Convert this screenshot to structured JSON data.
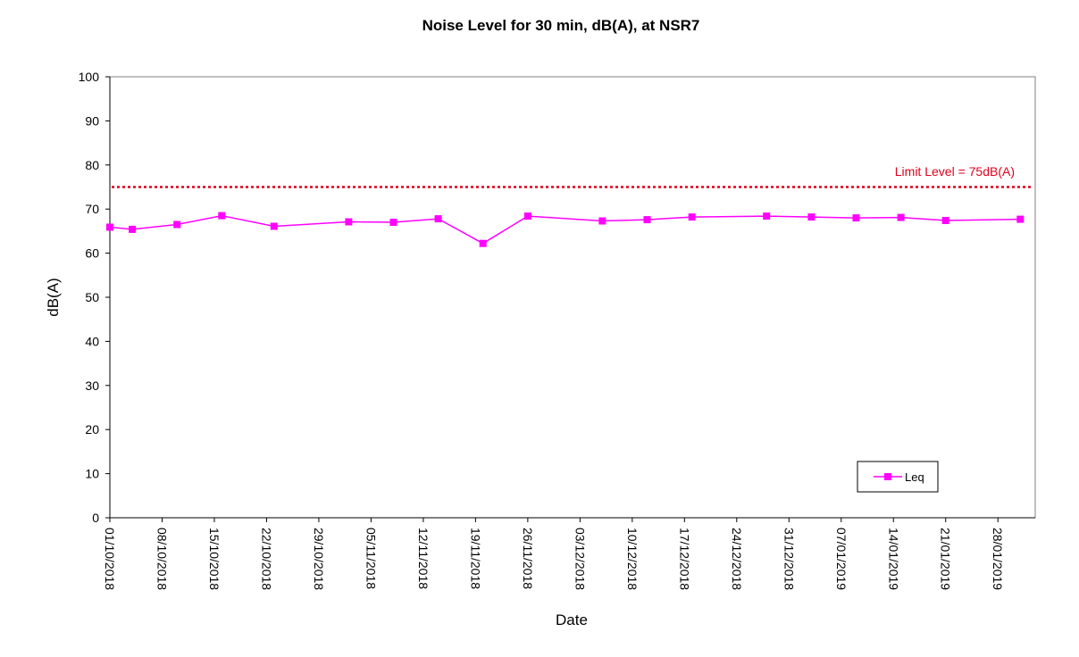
{
  "chart_data": {
    "type": "line",
    "title": "Noise Level for 30 min, dB(A), at NSR7",
    "xlabel": "Date",
    "ylabel": "dB(A)",
    "ylim": [
      0,
      100
    ],
    "yticks": [
      0,
      10,
      20,
      30,
      40,
      50,
      60,
      70,
      80,
      90,
      100
    ],
    "xlim": [
      "2018-10-01",
      "2019-02-02"
    ],
    "xtick_labels": [
      "01/10/2018",
      "08/10/2018",
      "15/10/2018",
      "22/10/2018",
      "29/10/2018",
      "05/11/2018",
      "12/11/2018",
      "19/11/2018",
      "26/11/2018",
      "03/12/2018",
      "10/12/2018",
      "17/12/2018",
      "24/12/2018",
      "31/12/2018",
      "07/01/2019",
      "14/01/2019",
      "21/01/2019",
      "28/01/2019"
    ],
    "grid": false,
    "legend_position": "bottom-right",
    "colors": {
      "series": "#ff00ff",
      "limit": "#e0001b",
      "axis": "#000000"
    },
    "series": [
      {
        "name": "Leq",
        "marker": "square",
        "x": [
          "2018-10-01",
          "2018-10-04",
          "2018-10-10",
          "2018-10-16",
          "2018-10-23",
          "2018-11-02",
          "2018-11-08",
          "2018-11-14",
          "2018-11-20",
          "2018-11-26",
          "2018-12-06",
          "2018-12-12",
          "2018-12-18",
          "2018-12-28",
          "2019-01-03",
          "2019-01-09",
          "2019-01-15",
          "2019-01-21",
          "2019-01-31"
        ],
        "y": [
          65.9,
          65.4,
          66.5,
          68.5,
          66.1,
          67.1,
          67.0,
          67.8,
          62.2,
          68.4,
          67.3,
          67.6,
          68.2,
          68.4,
          68.2,
          68.0,
          68.1,
          67.4,
          67.7
        ]
      }
    ],
    "limit_line": {
      "label": "Limit Level = 75dB(A)",
      "value": 75
    }
  }
}
